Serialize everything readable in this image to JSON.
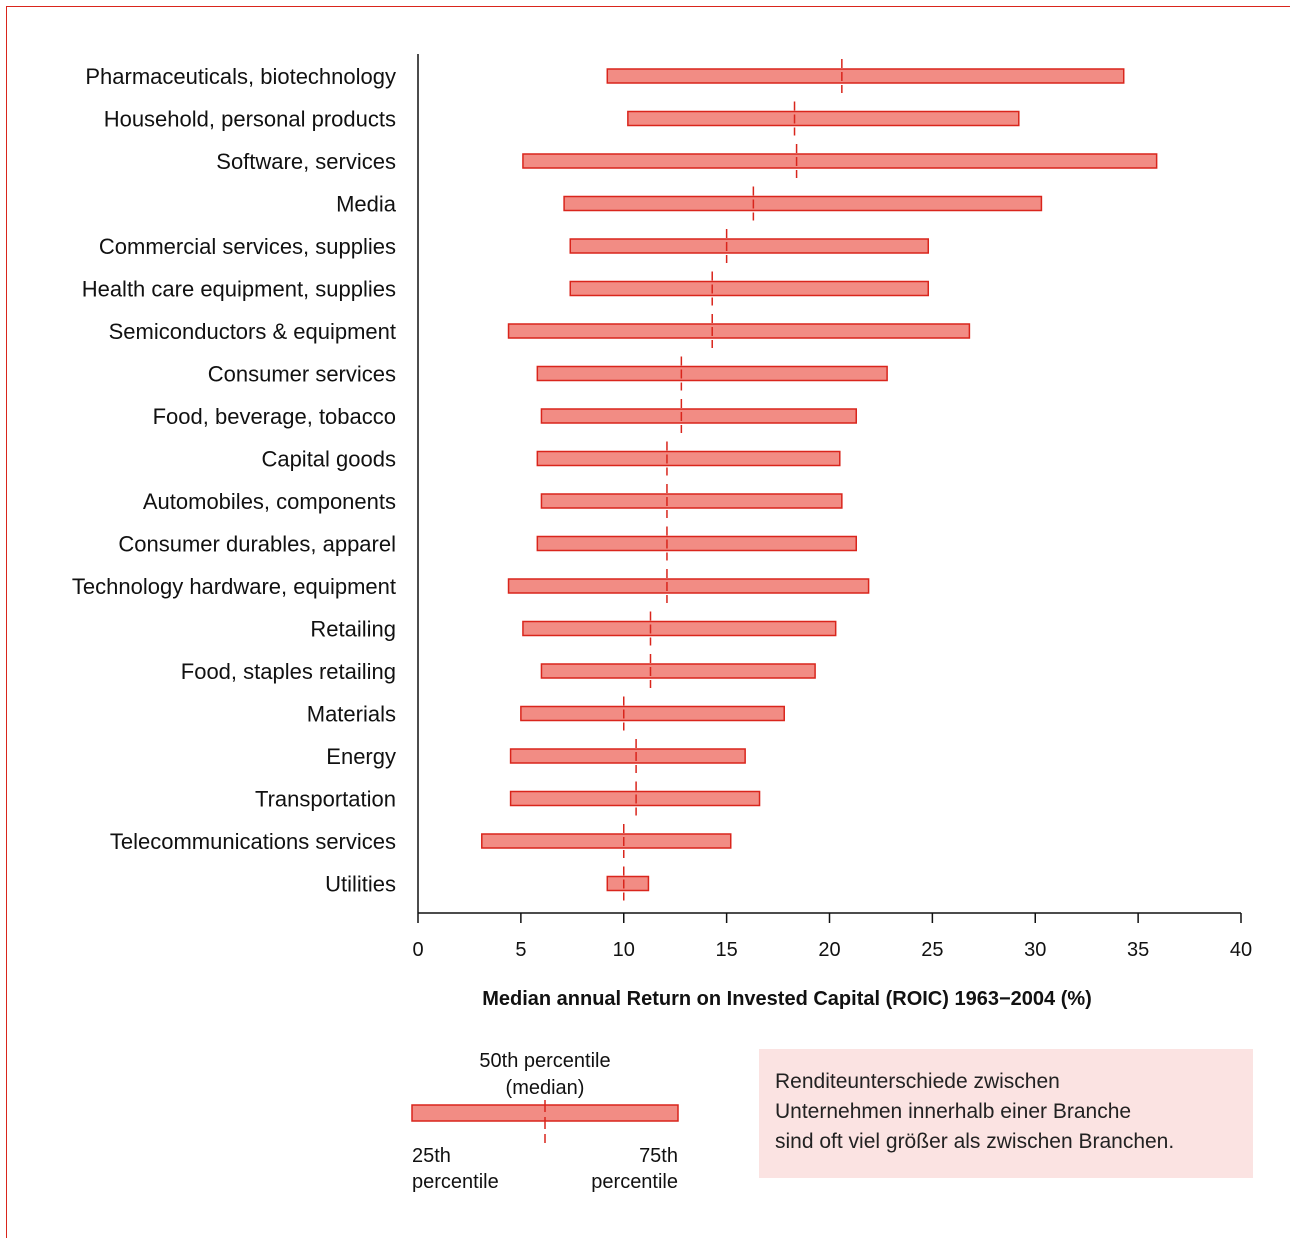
{
  "chart_data": {
    "type": "range-bar",
    "categories": [
      "Pharmaceuticals, biotechnology",
      "Household, personal products",
      "Software, services",
      "Media",
      "Commercial services, supplies",
      "Health care equipment, supplies",
      "Semiconductors & equipment",
      "Consumer services",
      "Food, beverage, tobacco",
      "Capital goods",
      "Automobiles, components",
      "Consumer durables, apparel",
      "Technology hardware, equipment",
      "Retailing",
      "Food, staples retailing",
      "Materials",
      "Energy",
      "Transportation",
      "Telecommunications services",
      "Utilities"
    ],
    "p25": [
      9.2,
      10.2,
      5.1,
      7.1,
      7.4,
      7.4,
      4.4,
      5.8,
      6.0,
      5.8,
      6.0,
      5.8,
      4.4,
      5.1,
      6.0,
      5.0,
      4.5,
      4.5,
      3.1,
      9.2
    ],
    "median": [
      20.6,
      18.3,
      18.4,
      16.3,
      15.0,
      14.3,
      14.3,
      12.8,
      12.8,
      12.1,
      12.1,
      12.1,
      12.1,
      11.3,
      11.3,
      10.0,
      10.6,
      10.6,
      10.0,
      10.0
    ],
    "p75": [
      34.3,
      29.2,
      35.9,
      30.3,
      24.8,
      24.8,
      26.8,
      22.8,
      21.3,
      20.5,
      20.6,
      21.3,
      21.9,
      20.3,
      19.3,
      17.8,
      15.9,
      16.6,
      15.2,
      11.2
    ],
    "xlabel": "Median annual Return on Invested Capital (ROIC) 1963−2004 (%)",
    "xlim": [
      0,
      40
    ],
    "xticks": [
      "0",
      "5",
      "10",
      "15",
      "20",
      "25",
      "30",
      "35",
      "40"
    ],
    "legend": {
      "median_line1": "50th percentile",
      "median_line2": "(median)",
      "p25_line1": "25th",
      "p25_line2": "percentile",
      "p75_line1": "75th",
      "p75_line2": "percentile"
    },
    "colors": {
      "bar_fill": "#f28c84",
      "bar_stroke": "#d9251c",
      "axis": "#111111"
    }
  },
  "note": {
    "line1": "Renditeunterschiede zwischen",
    "line2": "Unternehmen innerhalb einer Branche",
    "line3": "sind oft viel größer als zwischen Branchen."
  }
}
